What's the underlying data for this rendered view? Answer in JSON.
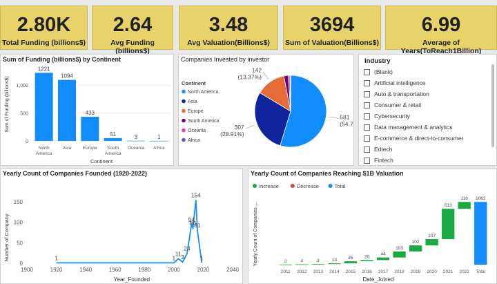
{
  "kpis": [
    {
      "value": "2.80K",
      "label": "Total Funding (billions$)"
    },
    {
      "value": "2.64",
      "label": "Avg Funding (billions$)"
    },
    {
      "value": "3.48",
      "label": "Avg Valuation(Billions$)"
    },
    {
      "value": "3694",
      "label": "Sum of Valuation(Billions$)"
    },
    {
      "value": "6.99",
      "label": "Average of Years(ToReach1Billion)"
    }
  ],
  "colors": {
    "kpi_bg": "#e8d36a",
    "bar": "#118dff",
    "increase": "#1aab40",
    "decrease": "#d64550",
    "total": "#118dff",
    "line": "#118dff"
  },
  "funding_panel": {
    "title": "Sum of Funding (billions$) by Continent"
  },
  "pie_panel": {
    "title": "Companies Invested by investor"
  },
  "industry": {
    "title": "Industry",
    "items": [
      "(Blank)",
      "Artificial intelligence",
      "Auto & transportation",
      "Consumer & retail",
      "Cybersecurity",
      "Data management & analytics",
      "E-commerce & direct-to-consumer",
      "Edtech",
      "Fintech"
    ]
  },
  "founded_panel": {
    "title": "Yearly Count of Companies Founded (1920-2022)"
  },
  "waterfall_panel": {
    "title": "Yearly Count of Companies Reaching $1B Valuation"
  },
  "chart_data": [
    {
      "type": "bar",
      "title": "Sum of Funding (billions$) by Continent",
      "categories": [
        "North America",
        "Asia",
        "Europe",
        "South America",
        "Oceania",
        "Africa"
      ],
      "category_lines": [
        [
          "North",
          "America"
        ],
        [
          "Asia"
        ],
        [
          "Europe"
        ],
        [
          "South",
          "America"
        ],
        [
          "Oceania"
        ],
        [
          "Africa"
        ]
      ],
      "values": [
        1221,
        1094,
        433,
        51,
        3,
        1
      ],
      "xlabel": "Continent",
      "ylabel": "Sum of Funding (billions$)",
      "yticks": [
        "0",
        "500",
        "1,000"
      ],
      "ytick_values": [
        0,
        500,
        1000
      ],
      "ylim": [
        0,
        1300
      ]
    },
    {
      "type": "pie",
      "title": "Companies Invested by investor",
      "legend_title": "Continent",
      "legend_position": "left",
      "slices": [
        {
          "name": "North America",
          "value": 581,
          "label": "581",
          "pct": "(54.71%)",
          "color": "#118dff"
        },
        {
          "name": "Asia",
          "value": 307,
          "label": "307",
          "pct": "(28.91%)",
          "color": "#12239e"
        },
        {
          "name": "Europe",
          "value": 142,
          "label": "142",
          "pct": "(13.37%)",
          "color": "#e66c37"
        },
        {
          "name": "South America",
          "value": 21,
          "color": "#6b007b"
        },
        {
          "name": "Oceania",
          "value": 8,
          "color": "#e044a7"
        },
        {
          "name": "Africa",
          "value": 3,
          "color": "#744ec2"
        }
      ]
    },
    {
      "type": "line",
      "title": "Yearly Count of Companies Founded (1920-2022)",
      "xlabel": "Year_Founded",
      "ylabel": "Number of Company",
      "xlim": [
        1900,
        2040
      ],
      "xticks": [
        "1900",
        "1920",
        "1940",
        "1960",
        "1980",
        "2000",
        "2020",
        "2040"
      ],
      "xtick_values": [
        1900,
        1920,
        1940,
        1960,
        1980,
        2000,
        2020,
        2040
      ],
      "ylim": [
        0,
        180
      ],
      "yticks": [
        "0",
        "50",
        "100",
        "150"
      ],
      "ytick_values": [
        0,
        50,
        100,
        150
      ],
      "points": [
        {
          "x": 1920,
          "y": 1,
          "label": "1"
        },
        {
          "x": 2000,
          "y": 1,
          "label": "1"
        },
        {
          "x": 2003,
          "y": 11,
          "label": "11"
        },
        {
          "x": 2006,
          "y": 3,
          "label": "3"
        },
        {
          "x": 2009,
          "y": 24,
          "label": "24"
        },
        {
          "x": 2012,
          "y": 94,
          "label": "94"
        },
        {
          "x": 2013,
          "y": 86,
          "label": "86"
        },
        {
          "x": 2015,
          "y": 154,
          "label": "154"
        },
        {
          "x": 2016,
          "y": 81,
          "label": "81"
        },
        {
          "x": 2019,
          "y": 1,
          "label": "1"
        }
      ]
    },
    {
      "type": "bar",
      "subtype": "waterfall",
      "title": "Yearly Count of Companies Reaching $1B Valuation",
      "legend": [
        "Increase",
        "Decrease",
        "Total"
      ],
      "legend_position": "top-left",
      "xlabel": "Date_Joined",
      "ylabel": "Yearly Count of Companies ...",
      "categories": [
        "2011",
        "2012",
        "2013",
        "2014",
        "2015",
        "2016",
        "2017",
        "2018",
        "2019",
        "2020",
        "2021",
        "2022",
        "Total"
      ],
      "values": [
        2,
        4,
        3,
        13,
        35,
        20,
        44,
        103,
        102,
        107,
        513,
        116,
        1062
      ],
      "ylim": [
        0,
        1100
      ]
    }
  ]
}
